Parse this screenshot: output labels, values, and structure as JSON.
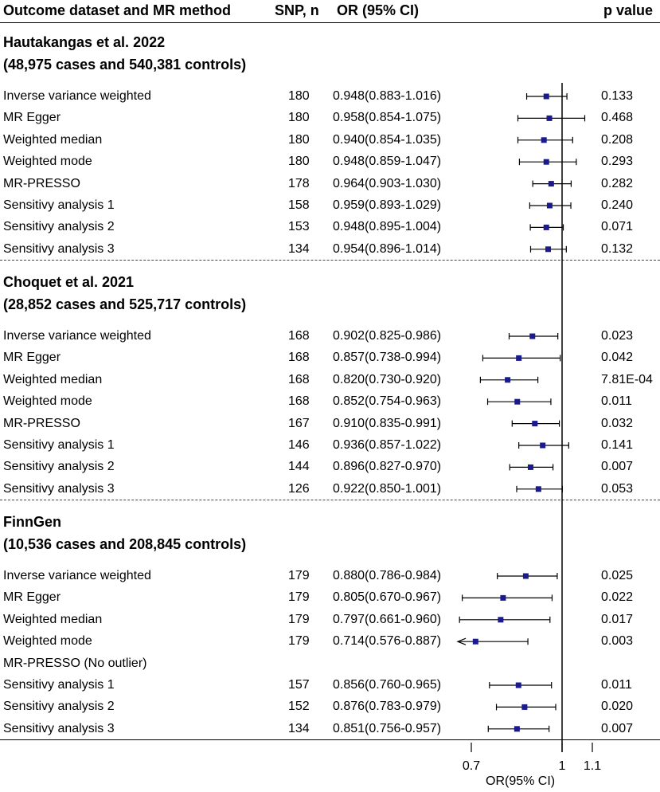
{
  "header": {
    "outcome": "Outcome dataset and MR method",
    "snp": "SNP, n",
    "or": "OR (95% CI)",
    "p": "p value"
  },
  "colors": {
    "marker": "#1a1a8c",
    "line": "#000000"
  },
  "chart_data": {
    "type": "forest",
    "xlabel": "OR(95% CI)",
    "xlim": [
      0.6,
      1.15
    ],
    "reference_line": 1,
    "ticks": [
      0.7,
      1,
      1.1
    ],
    "tick_labels": [
      "0.7",
      "1",
      "1.1"
    ],
    "groups": [
      {
        "title": "Hautakangas et al. 2022",
        "subtitle": "(48,975 cases and 540,381 controls)",
        "rows": [
          {
            "method": "Inverse variance weighted",
            "snp": "180",
            "or_text": "0.948(0.883-1.016)",
            "p": "0.133",
            "or": 0.948,
            "lo": 0.883,
            "hi": 1.016
          },
          {
            "method": "MR Egger",
            "snp": "180",
            "or_text": "0.958(0.854-1.075)",
            "p": "0.468",
            "or": 0.958,
            "lo": 0.854,
            "hi": 1.075
          },
          {
            "method": "Weighted median",
            "snp": "180",
            "or_text": "0.940(0.854-1.035)",
            "p": "0.208",
            "or": 0.94,
            "lo": 0.854,
            "hi": 1.035
          },
          {
            "method": "Weighted mode",
            "snp": "180",
            "or_text": "0.948(0.859-1.047)",
            "p": "0.293",
            "or": 0.948,
            "lo": 0.859,
            "hi": 1.047
          },
          {
            "method": "MR-PRESSO",
            "snp": "178",
            "or_text": "0.964(0.903-1.030)",
            "p": "0.282",
            "or": 0.964,
            "lo": 0.903,
            "hi": 1.03
          },
          {
            "method": "Sensitivy analysis 1",
            "snp": "158",
            "or_text": "0.959(0.893-1.029)",
            "p": "0.240",
            "or": 0.959,
            "lo": 0.893,
            "hi": 1.029
          },
          {
            "method": "Sensitivy analysis 2",
            "snp": "153",
            "or_text": "0.948(0.895-1.004)",
            "p": "0.071",
            "or": 0.948,
            "lo": 0.895,
            "hi": 1.004
          },
          {
            "method": "Sensitivy analysis 3",
            "snp": "134",
            "or_text": "0.954(0.896-1.014)",
            "p": "0.132",
            "or": 0.954,
            "lo": 0.896,
            "hi": 1.014
          }
        ]
      },
      {
        "title": "Choquet et al. 2021",
        "subtitle": "(28,852 cases and 525,717 controls)",
        "rows": [
          {
            "method": "Inverse variance weighted",
            "snp": "168",
            "or_text": "0.902(0.825-0.986)",
            "p": "0.023",
            "or": 0.902,
            "lo": 0.825,
            "hi": 0.986
          },
          {
            "method": "MR Egger",
            "snp": "168",
            "or_text": "0.857(0.738-0.994)",
            "p": "0.042",
            "or": 0.857,
            "lo": 0.738,
            "hi": 0.994
          },
          {
            "method": "Weighted median",
            "snp": "168",
            "or_text": "0.820(0.730-0.920)",
            "p": "7.81E-04",
            "or": 0.82,
            "lo": 0.73,
            "hi": 0.92
          },
          {
            "method": "Weighted mode",
            "snp": "168",
            "or_text": "0.852(0.754-0.963)",
            "p": "0.011",
            "or": 0.852,
            "lo": 0.754,
            "hi": 0.963
          },
          {
            "method": "MR-PRESSO",
            "snp": "167",
            "or_text": "0.910(0.835-0.991)",
            "p": "0.032",
            "or": 0.91,
            "lo": 0.835,
            "hi": 0.991
          },
          {
            "method": "Sensitivy analysis 1",
            "snp": "146",
            "or_text": "0.936(0.857-1.022)",
            "p": "0.141",
            "or": 0.936,
            "lo": 0.857,
            "hi": 1.022
          },
          {
            "method": "Sensitivy analysis 2",
            "snp": "144",
            "or_text": "0.896(0.827-0.970)",
            "p": "0.007",
            "or": 0.896,
            "lo": 0.827,
            "hi": 0.97
          },
          {
            "method": "Sensitivy analysis 3",
            "snp": "126",
            "or_text": "0.922(0.850-1.001)",
            "p": "0.053",
            "or": 0.922,
            "lo": 0.85,
            "hi": 1.001
          }
        ]
      },
      {
        "title": "FinnGen",
        "subtitle": "(10,536 cases and 208,845 controls)",
        "rows": [
          {
            "method": "Inverse variance weighted",
            "snp": "179",
            "or_text": "0.880(0.786-0.984)",
            "p": "0.025",
            "or": 0.88,
            "lo": 0.786,
            "hi": 0.984
          },
          {
            "method": "MR Egger",
            "snp": "179",
            "or_text": "0.805(0.670-0.967)",
            "p": "0.022",
            "or": 0.805,
            "lo": 0.67,
            "hi": 0.967
          },
          {
            "method": "Weighted median",
            "snp": "179",
            "or_text": "0.797(0.661-0.960)",
            "p": "0.017",
            "or": 0.797,
            "lo": 0.661,
            "hi": 0.96
          },
          {
            "method": "Weighted mode",
            "snp": "179",
            "or_text": "0.714(0.576-0.887)",
            "p": "0.003",
            "or": 0.714,
            "lo": 0.576,
            "hi": 0.887,
            "truncated_low": true
          },
          {
            "method": "MR-PRESSO (No outlier)",
            "snp": "",
            "or_text": "",
            "p": ""
          },
          {
            "method": "Sensitivy analysis 1",
            "snp": "157",
            "or_text": "0.856(0.760-0.965)",
            "p": "0.011",
            "or": 0.856,
            "lo": 0.76,
            "hi": 0.965
          },
          {
            "method": "Sensitivy analysis 2",
            "snp": "152",
            "or_text": "0.876(0.783-0.979)",
            "p": "0.020",
            "or": 0.876,
            "lo": 0.783,
            "hi": 0.979
          },
          {
            "method": "Sensitivy analysis 3",
            "snp": "134",
            "or_text": "0.851(0.756-0.957)",
            "p": "0.007",
            "or": 0.851,
            "lo": 0.756,
            "hi": 0.957
          }
        ]
      }
    ]
  }
}
